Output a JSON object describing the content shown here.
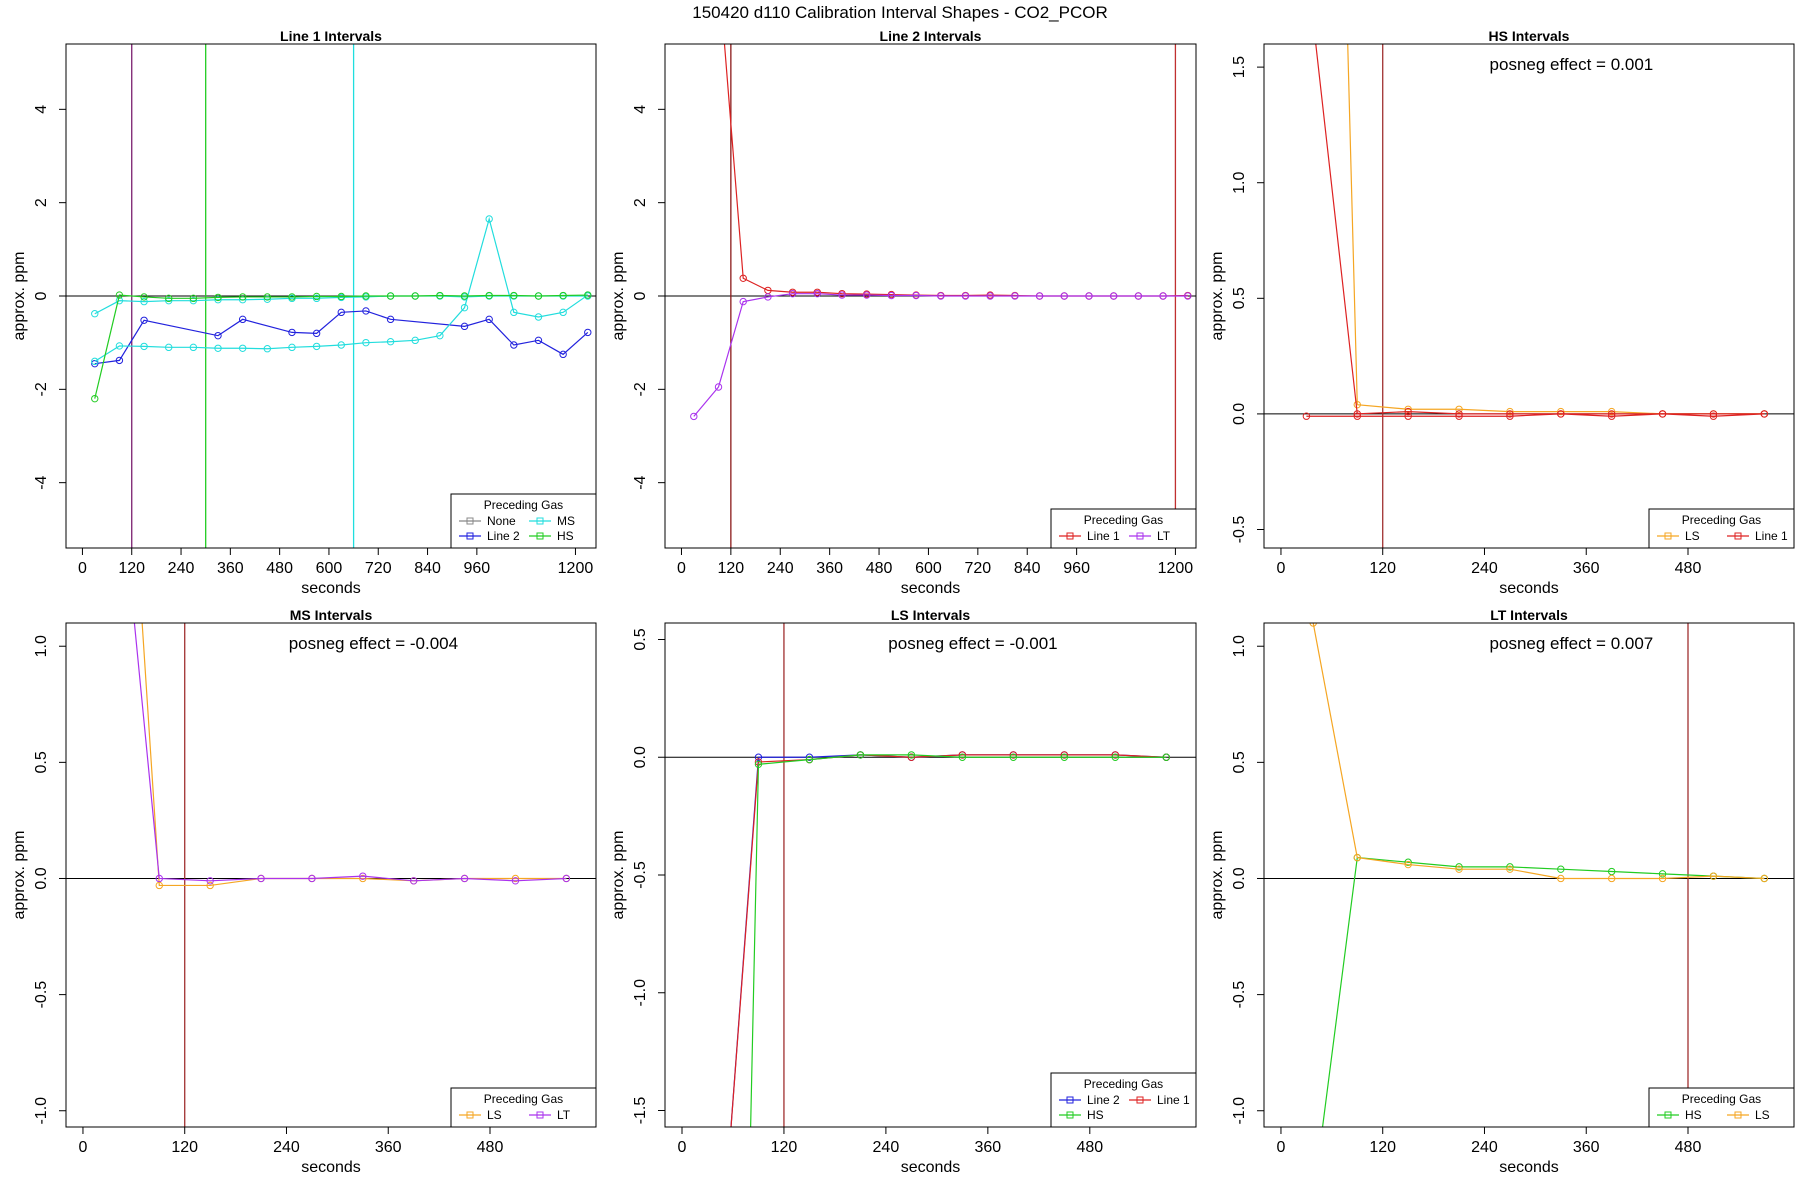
{
  "figure": {
    "title": "150420  d110   Calibration Interval Shapes - CO2_PCOR"
  },
  "chart_data": [
    {
      "type": "line",
      "title": "Line 1 Intervals",
      "xlabel": "seconds",
      "ylabel": "approx. ppm",
      "xlim": [
        -40,
        1250
      ],
      "ylim": [
        -5.4,
        5.4
      ],
      "xticks": [
        0,
        120,
        240,
        360,
        480,
        600,
        720,
        840,
        960,
        1200
      ],
      "yticks": [
        -4,
        -2,
        0,
        2,
        4
      ],
      "hlines": [
        0
      ],
      "vlines": [
        {
          "x": 120,
          "color": "#7a1f6f"
        },
        {
          "x": 300,
          "color": "#22cc22"
        },
        {
          "x": 660,
          "color": "#1fdede"
        }
      ],
      "legend": {
        "title": "Preceding Gas",
        "position": "bottom-right",
        "columns": 2,
        "entries": [
          {
            "label": "None",
            "color": "#888888"
          },
          {
            "label": "MS",
            "color": "#22dddd"
          },
          {
            "label": "Line 2",
            "color": "#2222dd"
          },
          {
            "label": "HS",
            "color": "#22cc22"
          }
        ]
      },
      "series": [
        {
          "color": "#2222dd",
          "x": [
            30,
            90,
            150,
            330,
            390,
            510,
            570,
            630,
            690,
            750,
            930,
            990,
            1050,
            1110,
            1170,
            1230
          ],
          "y": [
            -1.45,
            -1.38,
            -0.52,
            -0.85,
            -0.5,
            -0.78,
            -0.8,
            -0.35,
            -0.32,
            -0.5,
            -0.65,
            -0.5,
            -1.05,
            -0.95,
            -1.25,
            -0.78
          ]
        },
        {
          "color": "#22dddd",
          "x": [
            30,
            90,
            150,
            210,
            270,
            330,
            390,
            450,
            510,
            570,
            630,
            690,
            750,
            810,
            870,
            930,
            990,
            1050,
            1110,
            1170,
            1230
          ],
          "y": [
            -1.4,
            -1.07,
            -1.08,
            -1.1,
            -1.1,
            -1.12,
            -1.12,
            -1.13,
            -1.1,
            -1.08,
            -1.05,
            -1.0,
            -0.98,
            -0.95,
            -0.85,
            -0.25,
            1.65,
            -0.35,
            -0.45,
            -0.35,
            0.02
          ]
        },
        {
          "color": "#22dddd",
          "x": [
            30,
            90,
            150,
            210,
            270,
            330,
            390,
            450,
            510,
            570,
            630,
            690,
            750,
            810,
            870,
            930,
            990,
            1050,
            1110,
            1170,
            1230
          ],
          "y": [
            -0.38,
            -0.1,
            -0.12,
            -0.1,
            -0.1,
            -0.08,
            -0.08,
            -0.07,
            -0.05,
            -0.05,
            -0.03,
            -0.02,
            0.0,
            0.0,
            0.0,
            -0.02,
            0.0,
            0.0,
            0.0,
            0.0,
            0.0
          ]
        },
        {
          "color": "#22cc22",
          "x": [
            30,
            90,
            150,
            210,
            270,
            330,
            390,
            450,
            510,
            570,
            630,
            690,
            750,
            810,
            870,
            930,
            990,
            1050,
            1110,
            1170,
            1230
          ],
          "y": [
            -2.2,
            0.02,
            -0.02,
            -0.05,
            -0.05,
            -0.03,
            -0.02,
            -0.02,
            -0.02,
            -0.01,
            -0.01,
            0.0,
            0.0,
            0.0,
            0.01,
            0.0,
            0.01,
            0.01,
            0.0,
            0.01,
            0.02
          ]
        }
      ]
    },
    {
      "type": "line",
      "title": "Line 2 Intervals",
      "xlabel": "seconds",
      "ylabel": "approx. ppm",
      "xlim": [
        -40,
        1250
      ],
      "ylim": [
        -5.4,
        5.4
      ],
      "xticks": [
        0,
        120,
        240,
        360,
        480,
        600,
        720,
        840,
        960,
        1200
      ],
      "yticks": [
        -4,
        -2,
        0,
        2,
        4
      ],
      "hlines": [
        0
      ],
      "vlines": [
        {
          "x": 120,
          "color": "#8b1a1a"
        },
        {
          "x": 1200,
          "color": "#c03030"
        }
      ],
      "legend": {
        "title": "Preceding Gas",
        "position": "bottom-right",
        "columns": 2,
        "entries": [
          {
            "label": "Line 1",
            "color": "#dd2222"
          },
          {
            "label": "LT",
            "color": "#aa33ee"
          }
        ]
      },
      "series": [
        {
          "color": "#dd2222",
          "x": [
            90,
            150,
            210,
            270,
            330,
            390,
            450,
            510,
            570,
            630,
            690,
            750,
            810,
            870,
            930,
            990,
            1050,
            1110,
            1170,
            1230
          ],
          "y": [
            7.0,
            0.38,
            0.12,
            0.08,
            0.08,
            0.05,
            0.04,
            0.03,
            0.02,
            0.01,
            0.01,
            0.02,
            0.01,
            0.0,
            0.0,
            0.0,
            0.0,
            0.0,
            0.0,
            0.01
          ]
        },
        {
          "color": "#aa33ee",
          "x": [
            30,
            90,
            150,
            210,
            270,
            330,
            390,
            450,
            510,
            570,
            630,
            690,
            750,
            810,
            870,
            930,
            990,
            1050,
            1110,
            1170,
            1230
          ],
          "y": [
            -2.58,
            -1.95,
            -0.12,
            -0.02,
            0.05,
            0.05,
            0.02,
            0.02,
            0.01,
            0.01,
            0.0,
            0.0,
            0.0,
            0.0,
            0.0,
            0.0,
            0.0,
            0.0,
            0.0,
            0.0,
            0.0
          ]
        }
      ]
    },
    {
      "type": "line",
      "title": "HS Intervals",
      "annotation": "posneg effect = 0.001",
      "xlabel": "seconds",
      "ylabel": "approx. ppm",
      "xlim": [
        -20,
        605
      ],
      "ylim": [
        -0.58,
        1.6
      ],
      "xticks": [
        0,
        120,
        240,
        360,
        480
      ],
      "yticks": [
        -0.5,
        0.0,
        0.5,
        1.0,
        1.5
      ],
      "ytick_labels": [
        "-0.5",
        "0.0",
        "0.5",
        "1.0",
        "1.5"
      ],
      "hlines": [
        0
      ],
      "vlines": [
        {
          "x": 120,
          "color": "#a03030"
        }
      ],
      "legend": {
        "title": "Preceding Gas",
        "position": "bottom-right",
        "columns": 2,
        "entries": [
          {
            "label": "LS",
            "color": "#f5a623"
          },
          {
            "label": "Line 1",
            "color": "#dd2222"
          }
        ]
      },
      "series": [
        {
          "color": "#f5a623",
          "x": [
            78,
            90,
            150,
            210,
            270,
            330,
            390,
            450,
            510,
            570
          ],
          "y": [
            1.7,
            0.04,
            0.02,
            0.02,
            0.01,
            0.01,
            0.01,
            0.0,
            0.0,
            0.0
          ]
        },
        {
          "color": "#dd2222",
          "x": [
            38,
            90,
            150,
            210,
            270,
            330,
            390,
            450,
            510,
            570
          ],
          "y": [
            1.7,
            0.0,
            0.01,
            0.0,
            0.0,
            0.0,
            0.0,
            0.0,
            0.0,
            0.0
          ]
        },
        {
          "color": "#dd2222",
          "x": [
            30,
            90,
            150,
            210,
            270,
            330,
            390,
            450,
            510,
            570
          ],
          "y": [
            -0.01,
            -0.01,
            -0.01,
            -0.01,
            -0.01,
            0.0,
            -0.01,
            0.0,
            -0.01,
            0.0
          ]
        }
      ]
    },
    {
      "type": "line",
      "title": "MS Intervals",
      "annotation": "posneg effect = -0.004",
      "xlabel": "seconds",
      "ylabel": "approx. ppm",
      "xlim": [
        -20,
        605
      ],
      "ylim": [
        -1.07,
        1.1
      ],
      "xticks": [
        0,
        120,
        240,
        360,
        480
      ],
      "yticks": [
        -1.0,
        -0.5,
        0.0,
        0.5,
        1.0
      ],
      "ytick_labels": [
        "-1.0",
        "-0.5",
        "0.0",
        "0.5",
        "1.0"
      ],
      "hlines": [
        0
      ],
      "vlines": [
        {
          "x": 120,
          "color": "#a03030"
        }
      ],
      "legend": {
        "title": "Preceding Gas",
        "position": "bottom-right",
        "columns": 2,
        "entries": [
          {
            "label": "LS",
            "color": "#f5a623"
          },
          {
            "label": "LT",
            "color": "#aa33ee"
          }
        ]
      },
      "series": [
        {
          "color": "#f5a623",
          "x": [
            68,
            90,
            150,
            210,
            270,
            330,
            390,
            450,
            510,
            570
          ],
          "y": [
            1.2,
            -0.03,
            -0.03,
            0.0,
            0.0,
            0.0,
            -0.01,
            0.0,
            0.0,
            0.0
          ]
        },
        {
          "color": "#aa33ee",
          "x": [
            58,
            90,
            150,
            210,
            270,
            330,
            390,
            450,
            510,
            570
          ],
          "y": [
            1.2,
            0.0,
            -0.01,
            0.0,
            0.0,
            0.01,
            -0.01,
            0.0,
            -0.01,
            0.0
          ]
        }
      ]
    },
    {
      "type": "line",
      "title": "LS Intervals",
      "annotation": "posneg effect = -0.001",
      "xlabel": "seconds",
      "ylabel": "approx. ppm",
      "xlim": [
        -20,
        605
      ],
      "ylim": [
        -1.57,
        0.57
      ],
      "xticks": [
        0,
        120,
        240,
        360,
        480
      ],
      "yticks": [
        -1.5,
        -1.0,
        -0.5,
        0.0,
        0.5
      ],
      "ytick_labels": [
        "-1.5",
        "-1.0",
        "-0.5",
        "0.0",
        "0.5"
      ],
      "hlines": [
        0
      ],
      "vlines": [
        {
          "x": 120,
          "color": "#a03030"
        }
      ],
      "legend": {
        "title": "Preceding Gas",
        "position": "bottom-right",
        "columns": 2,
        "entries": [
          {
            "label": "Line 2",
            "color": "#2222dd"
          },
          {
            "label": "Line 1",
            "color": "#dd2222"
          },
          {
            "label": "HS",
            "color": "#22cc22"
          }
        ]
      },
      "series": [
        {
          "color": "#2222dd",
          "x": [
            55,
            90,
            150,
            210,
            270,
            330,
            390,
            450,
            510,
            570
          ],
          "y": [
            -1.7,
            0.0,
            0.0,
            0.01,
            0.0,
            0.01,
            0.01,
            0.01,
            0.01,
            0.0
          ]
        },
        {
          "color": "#dd2222",
          "x": [
            55,
            90,
            150,
            210,
            270,
            330,
            390,
            450,
            510,
            570
          ],
          "y": [
            -1.7,
            -0.02,
            -0.01,
            0.01,
            0.0,
            0.01,
            0.01,
            0.01,
            0.01,
            0.0
          ]
        },
        {
          "color": "#22cc22",
          "x": [
            80,
            90,
            150,
            210,
            270,
            330,
            390,
            450,
            510,
            570
          ],
          "y": [
            -1.7,
            -0.03,
            -0.01,
            0.01,
            0.01,
            0.0,
            0.0,
            0.0,
            0.0,
            0.0
          ]
        }
      ]
    },
    {
      "type": "line",
      "title": "LT Intervals",
      "annotation": "posneg effect = 0.007",
      "xlabel": "seconds",
      "ylabel": "approx. ppm",
      "xlim": [
        -20,
        605
      ],
      "ylim": [
        -1.07,
        1.1
      ],
      "xticks": [
        0,
        120,
        240,
        360,
        480
      ],
      "yticks": [
        -1.0,
        -0.5,
        0.0,
        0.5,
        1.0
      ],
      "ytick_labels": [
        "-1.0",
        "-0.5",
        "0.0",
        "0.5",
        "1.0"
      ],
      "hlines": [
        0
      ],
      "vlines": [
        {
          "x": 480,
          "color": "#a03030"
        }
      ],
      "legend": {
        "title": "Preceding Gas",
        "position": "bottom-right",
        "columns": 2,
        "entries": [
          {
            "label": "HS",
            "color": "#22cc22"
          },
          {
            "label": "LS",
            "color": "#f5a623"
          }
        ]
      },
      "series": [
        {
          "color": "#22cc22",
          "x": [
            48,
            90,
            150,
            210,
            270,
            330,
            390,
            450,
            510,
            570
          ],
          "y": [
            -1.1,
            0.09,
            0.07,
            0.05,
            0.05,
            0.04,
            0.03,
            0.02,
            0.01,
            0.0
          ]
        },
        {
          "color": "#f5a623",
          "x": [
            38,
            90,
            150,
            210,
            270,
            330,
            390,
            450,
            510,
            570
          ],
          "y": [
            1.1,
            0.09,
            0.06,
            0.04,
            0.04,
            0.0,
            0.0,
            0.0,
            0.01,
            0.0
          ]
        }
      ]
    }
  ]
}
